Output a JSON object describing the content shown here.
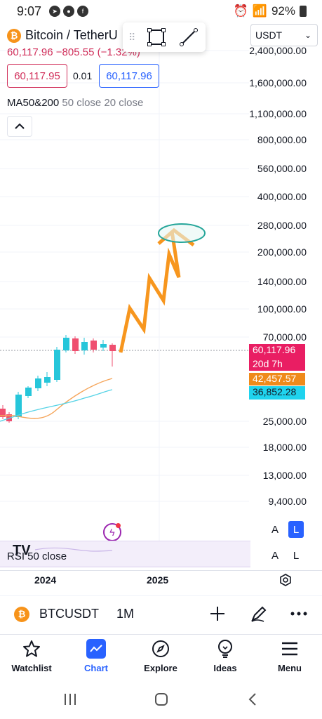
{
  "status_bar": {
    "time": "9:07",
    "battery": "92%"
  },
  "header": {
    "symbol_title": "Bitcoin / TetherU",
    "price_line": "60,117.96  −805.55 (−1.32%)",
    "currency": "USDT",
    "bid": "60,117.95",
    "spread": "0.01",
    "ask": "60,117.96"
  },
  "indicator": {
    "name": "MA50&200",
    "params": "50 close 20 close"
  },
  "price_axis": [
    "2,400,000.00",
    "1,600,000.00",
    "1,100,000.00",
    "800,000.00",
    "560,000.00",
    "400,000.00",
    "280,000.00",
    "200,000.00",
    "140,000.00",
    "100,000.00",
    "70,000.00",
    "25,000.00",
    "18,000.00",
    "13,000.00",
    "9,400.00"
  ],
  "price_tags": {
    "last_price": "60,117.96",
    "countdown": "20d 7h",
    "ma_orange": "42,457.57",
    "ma_cyan": "36,852.28"
  },
  "colors": {
    "up": "#26c6da",
    "down": "#ef4f6f",
    "last_price_bg": "#e91e63",
    "ma_orange_bg": "#ef8a1b",
    "ma_cyan_bg": "#1fd3ee",
    "drawing_arrow": "#f7961e",
    "target_ellipse": "#26a69a",
    "accent": "#2962ff"
  },
  "scale_buttons": {
    "a": "A",
    "l": "L"
  },
  "rsi": {
    "label": "RSI 50 close"
  },
  "time_axis": [
    "2024",
    "2025"
  ],
  "symbol_bar": {
    "ticker": "BTCUSDT",
    "interval": "1M"
  },
  "bottom_nav": [
    {
      "label": "Watchlist",
      "icon": "star-icon"
    },
    {
      "label": "Chart",
      "icon": "chart-icon"
    },
    {
      "label": "Explore",
      "icon": "compass-icon"
    },
    {
      "label": "Ideas",
      "icon": "lightbulb-icon"
    },
    {
      "label": "Menu",
      "icon": "menu-icon"
    }
  ]
}
